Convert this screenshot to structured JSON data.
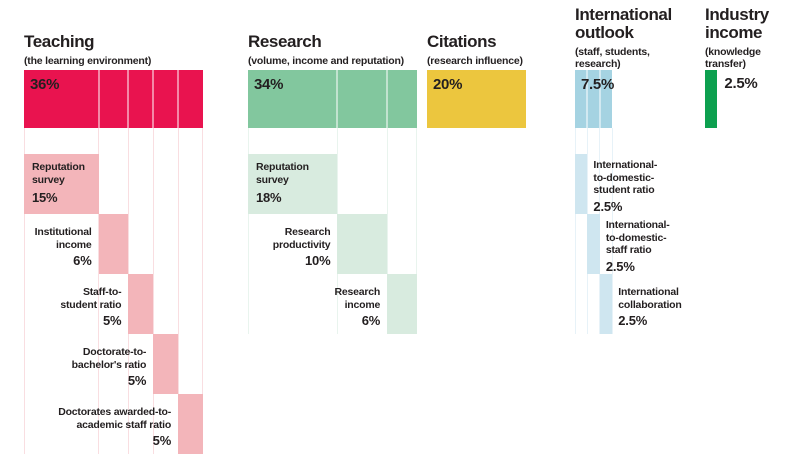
{
  "chart_data": {
    "type": "bar",
    "variant": "weighted-breakdown",
    "unit": "%",
    "text_color": "#231f20",
    "background_color": "#ffffff",
    "grid": false,
    "groups": [
      {
        "name": "Teaching",
        "title_lines": [
          "Teaching"
        ],
        "subtitle_lines": [
          "(the learning environment)"
        ],
        "total": 36,
        "total_label": "36%",
        "bar_color": "#e9134f",
        "block_color": "#f3b5ba",
        "guide_color": "#f9dee1",
        "components": [
          {
            "label": "Reputation survey",
            "label_lines": [
              "Reputation",
              "survey"
            ],
            "value": 15,
            "value_label": "15%",
            "label_side": "inside"
          },
          {
            "label": "Institutional income",
            "label_lines": [
              "Institutional",
              "income"
            ],
            "value": 6,
            "value_label": "6%",
            "label_side": "left"
          },
          {
            "label": "Staff-to-student ratio",
            "label_lines": [
              "Staff-to-",
              "student ratio"
            ],
            "value": 5,
            "value_label": "5%",
            "label_side": "left"
          },
          {
            "label": "Doctorate-to-bachelor's ratio",
            "label_lines": [
              "Doctorate-to-",
              "bachelor's ratio"
            ],
            "value": 5,
            "value_label": "5%",
            "label_side": "left"
          },
          {
            "label": "Doctorates awarded-to-academic staff ratio",
            "label_lines": [
              "Doctorates awarded-to-",
              "academic staff ratio"
            ],
            "value": 5,
            "value_label": "5%",
            "label_side": "left"
          }
        ]
      },
      {
        "name": "Research",
        "title_lines": [
          "Research"
        ],
        "subtitle_lines": [
          "(volume, income and reputation)"
        ],
        "total": 34,
        "total_label": "34%",
        "bar_color": "#82c79e",
        "block_color": "#d8ebdf",
        "guide_color": "#e9f4ee",
        "components": [
          {
            "label": "Reputation survey",
            "label_lines": [
              "Reputation",
              "survey"
            ],
            "value": 18,
            "value_label": "18%",
            "label_side": "inside"
          },
          {
            "label": "Research productivity",
            "label_lines": [
              "Research",
              "productivity"
            ],
            "value": 10,
            "value_label": "10%",
            "label_side": "left"
          },
          {
            "label": "Research income",
            "label_lines": [
              "Research",
              "income"
            ],
            "value": 6,
            "value_label": "6%",
            "label_side": "left"
          }
        ]
      },
      {
        "name": "Citations",
        "title_lines": [
          "Citations"
        ],
        "subtitle_lines": [
          "(research influence)"
        ],
        "total": 20,
        "total_label": "20%",
        "bar_color": "#ecc63e",
        "block_color": "#ecc63e",
        "guide_color": "#ffffff",
        "components": []
      },
      {
        "name": "International outlook",
        "title_lines": [
          "International",
          "outlook"
        ],
        "subtitle_lines": [
          "(staff, students,",
          "research)"
        ],
        "total": 7.5,
        "total_label": "7.5%",
        "bar_color": "#a5d3e2",
        "block_color": "#cfe6f0",
        "guide_color": "#e7f2f8",
        "components": [
          {
            "label": "International-to-domestic-student ratio",
            "label_lines": [
              "International-",
              "to-domestic-",
              "student ratio"
            ],
            "value": 2.5,
            "value_label": "2.5%",
            "label_side": "right"
          },
          {
            "label": "International-to-domestic-staff ratio",
            "label_lines": [
              "International-",
              "to-domestic-",
              "staff ratio"
            ],
            "value": 2.5,
            "value_label": "2.5%",
            "label_side": "right"
          },
          {
            "label": "International collaboration",
            "label_lines": [
              "International",
              "collaboration"
            ],
            "value": 2.5,
            "value_label": "2.5%",
            "label_side": "right"
          }
        ]
      },
      {
        "name": "Industry income",
        "title_lines": [
          "Industry",
          "income"
        ],
        "subtitle_lines": [
          "(knowledge",
          "transfer)"
        ],
        "total": 2.5,
        "total_label": "2.5%",
        "total_label_side": "right",
        "bar_color": "#0da04f",
        "block_color": "#0da04f",
        "guide_color": "#ffffff",
        "components": []
      }
    ]
  }
}
